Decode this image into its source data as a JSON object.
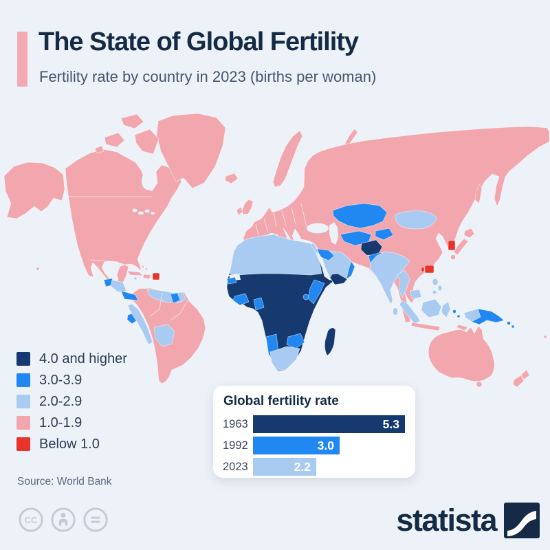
{
  "colors": {
    "bg": "#edf2f8",
    "card": "#ffffff",
    "ink": "#152a44",
    "sub": "#46566e",
    "muted": "#5a6a80",
    "accent": "#f4a9b2",
    "icongray": "#c2ccd8",
    "cat4": "#163a70",
    "cat3": "#2188f2",
    "cat2": "#a9cbf2",
    "cat1": "#f2a6ae",
    "cat0": "#e8342b"
  },
  "header": {
    "title": "The State of Global Fertility",
    "subtitle": "Fertility rate by country in 2023 (births per woman)"
  },
  "legend": {
    "items": [
      {
        "label": "4.0 and higher",
        "color": "#163a70"
      },
      {
        "label": "3.0-3.9",
        "color": "#2188f2"
      },
      {
        "label": "2.0-2.9",
        "color": "#a9cbf2"
      },
      {
        "label": "1.0-1.9",
        "color": "#f2a6ae"
      },
      {
        "label": "Below 1.0",
        "color": "#e8342b"
      }
    ]
  },
  "inset": {
    "title": "Global fertility rate",
    "axis_max": 5.3,
    "bars": [
      {
        "year": "1963",
        "value": 5.3,
        "value_label": "5.3",
        "color": "#163a70"
      },
      {
        "year": "1992",
        "value": 3.0,
        "value_label": "3.0",
        "color": "#2188f2"
      },
      {
        "year": "2023",
        "value": 2.2,
        "value_label": "2.2",
        "color": "#a9cbf2"
      }
    ]
  },
  "source": {
    "text": "Source: World Bank"
  },
  "footer": {
    "brand": "statista",
    "license_icons": [
      "cc-icon",
      "attribution-person-icon",
      "equal-sign-icon"
    ]
  },
  "chart_data": [
    {
      "type": "heatmap",
      "subtype": "world-choropleth",
      "title": "Fertility rate by country in 2023 (births per woman)",
      "legend_position": "bottom-left",
      "categories": [
        "4.0 and higher",
        "3.0-3.9",
        "2.0-2.9",
        "1.0-1.9",
        "Below 1.0"
      ],
      "category_colors": [
        "#163a70",
        "#2188f2",
        "#a9cbf2",
        "#f2a6ae",
        "#e8342b"
      ],
      "regions": [
        {
          "region": "USA, Canada, Greenland, Mexico",
          "category": "1.0-1.9"
        },
        {
          "region": "Cuba, Hispaniola",
          "category": "1.0-1.9"
        },
        {
          "region": "Puerto Rico",
          "category": "Below 1.0"
        },
        {
          "region": "Guatemala, Panama, Ecuador, Guyana",
          "category": "3.0-3.9"
        },
        {
          "region": "Honduras, Nicaragua, Venezuela, Peru, Bolivia, Paraguay",
          "category": "2.0-2.9"
        },
        {
          "region": "Brazil, Colombia, Argentina, Chile, Uruguay",
          "category": "1.0-1.9"
        },
        {
          "region": "Europe incl. Russia, Iceland, UK",
          "category": "1.0-1.9"
        },
        {
          "region": "North Africa (Morocco to Egypt), Saudi Arabia, Levant",
          "category": "2.0-2.9"
        },
        {
          "region": "Sub-Saharan Africa (Sahel, Nigeria, Congo, Somalia, Tanzania, Mozambique, Madagascar), Afghanistan, Yemen",
          "category": "4.0 and higher"
        },
        {
          "region": "Ghana, Côte d'Ivoire, Senegal, Gabon, Ethiopia, Kenya, Zambia, Zimbabwe, Namibia",
          "category": "3.0-3.9"
        },
        {
          "region": "South Africa, Botswana",
          "category": "2.0-2.9"
        },
        {
          "region": "Kazakhstan, Kyrgyzstan, Uzbekistan, Turkmenistan, Iraq, Pakistan, Papua New Guinea, Solomon Is.",
          "category": "3.0-3.9"
        },
        {
          "region": "India, Mongolia, Myanmar, Cambodia, Philippines, Indonesia, Malaysia (Borneo)",
          "category": "2.0-2.9"
        },
        {
          "region": "China, Japan, Thailand, Vietnam, Turkey, Iran, Australia, New Zealand",
          "category": "1.0-1.9"
        },
        {
          "region": "South Korea, Hong Kong, Macau",
          "category": "Below 1.0"
        }
      ]
    },
    {
      "type": "bar",
      "orientation": "horizontal",
      "title": "Global fertility rate",
      "categories": [
        "1963",
        "1992",
        "2023"
      ],
      "values": [
        5.3,
        3.0,
        2.2
      ],
      "xlabel": "",
      "ylabel": "",
      "xlim": [
        0,
        5.3
      ],
      "bar_colors": [
        "#163a70",
        "#2188f2",
        "#a9cbf2"
      ]
    }
  ]
}
